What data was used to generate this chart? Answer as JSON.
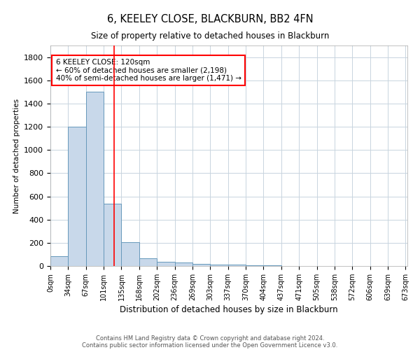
{
  "title1": "6, KEELEY CLOSE, BLACKBURN, BB2 4FN",
  "title2": "Size of property relative to detached houses in Blackburn",
  "xlabel": "Distribution of detached houses by size in Blackburn",
  "ylabel": "Number of detached properties",
  "bar_left_edges": [
    0,
    33.5,
    67,
    100.5,
    134,
    167.5,
    201,
    234.5,
    268,
    301.5,
    335,
    368.5,
    402,
    435.5,
    469,
    502.5,
    536,
    569.5,
    603,
    636.5
  ],
  "bar_heights": [
    85,
    1200,
    1500,
    535,
    205,
    65,
    35,
    30,
    20,
    15,
    10,
    8,
    5,
    3,
    2,
    1,
    1,
    0,
    0,
    0
  ],
  "bar_width": 33.5,
  "bar_color": "#c8d8ea",
  "bar_edge_color": "#6699bb",
  "red_line_x": 120,
  "annotation_text": "6 KEELEY CLOSE: 120sqm\n← 60% of detached houses are smaller (2,198)\n40% of semi-detached houses are larger (1,471) →",
  "ylim": [
    0,
    1900
  ],
  "xlim": [
    0,
    673.5
  ],
  "xtick_positions": [
    0,
    33.5,
    67,
    100.5,
    134,
    167.5,
    201,
    234.5,
    268,
    301.5,
    335,
    368.5,
    402,
    435.5,
    469,
    502.5,
    536,
    569.5,
    603,
    636.5,
    670
  ],
  "xtick_labels": [
    "0sqm",
    "34sqm",
    "67sqm",
    "101sqm",
    "135sqm",
    "168sqm",
    "202sqm",
    "236sqm",
    "269sqm",
    "303sqm",
    "337sqm",
    "370sqm",
    "404sqm",
    "437sqm",
    "471sqm",
    "505sqm",
    "538sqm",
    "572sqm",
    "606sqm",
    "639sqm",
    "673sqm"
  ],
  "ytick_positions": [
    0,
    200,
    400,
    600,
    800,
    1000,
    1200,
    1400,
    1600,
    1800
  ],
  "footer1": "Contains HM Land Registry data © Crown copyright and database right 2024.",
  "footer2": "Contains public sector information licensed under the Open Government Licence v3.0.",
  "bg_color": "#ffffff",
  "grid_color": "#c8d4de"
}
